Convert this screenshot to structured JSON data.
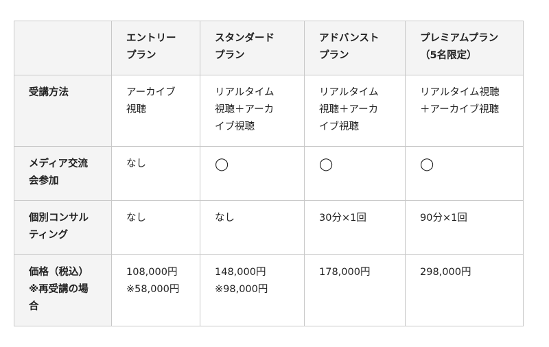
{
  "table": {
    "headers": [
      "",
      "エントリー\nプラン",
      "スタンダード\nプラン",
      "アドバンスト\nプラン",
      "プレミアムプラン\n（5名限定）"
    ],
    "rows": [
      {
        "label": "受講方法",
        "cells": [
          "アーカイブ\n視聴",
          "リアルタイム\n視聴＋アーカ\nイブ視聴",
          "リアルタイム\n視聴＋アーカ\nイブ視聴",
          "リアルタイム視聴\n＋アーカイブ視聴"
        ]
      },
      {
        "label": "メディア交流\n会参加",
        "cells": [
          "なし",
          "◯",
          "◯",
          "◯"
        ]
      },
      {
        "label": "個別コンサル\nティング",
        "cells": [
          "なし",
          "なし",
          "30分×1回",
          "90分×1回"
        ]
      },
      {
        "label": "価格（税込）\n※再受講の場\n合",
        "cells": [
          "108,000円\n※58,000円",
          "148,000円\n※98,000円",
          "178,000円",
          "298,000円"
        ]
      }
    ]
  }
}
